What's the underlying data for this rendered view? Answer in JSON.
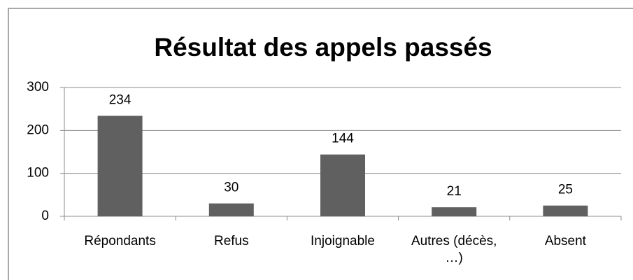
{
  "chart_data": {
    "type": "bar",
    "title": "Résultat des appels passés",
    "categories": [
      "Répondants",
      "Refus",
      "Injoignable",
      "Autres (décès, …)",
      "Absent"
    ],
    "values": [
      234,
      30,
      144,
      21,
      25
    ],
    "color": "#606060",
    "ylim": [
      0,
      300
    ],
    "yticks": [
      0,
      100,
      200,
      300
    ],
    "grid": true
  }
}
